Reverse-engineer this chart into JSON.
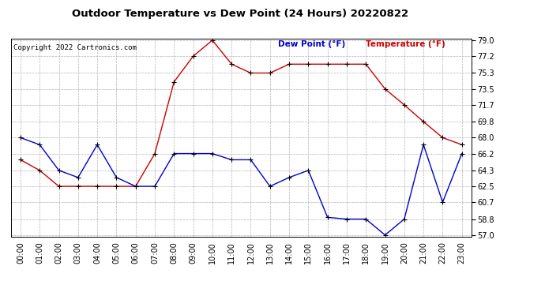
{
  "title": "Outdoor Temperature vs Dew Point (24 Hours) 20220822",
  "copyright": "Copyright 2022 Cartronics.com",
  "legend_dew": "Dew Point (°F)",
  "legend_temp": "Temperature (°F)",
  "hours": [
    "00:00",
    "01:00",
    "02:00",
    "03:00",
    "04:00",
    "05:00",
    "06:00",
    "07:00",
    "08:00",
    "09:00",
    "10:00",
    "11:00",
    "12:00",
    "13:00",
    "14:00",
    "15:00",
    "16:00",
    "17:00",
    "18:00",
    "19:00",
    "20:00",
    "21:00",
    "22:00",
    "23:00"
  ],
  "temperature": [
    65.5,
    64.3,
    62.5,
    62.5,
    62.5,
    62.5,
    62.5,
    66.2,
    74.3,
    77.2,
    79.0,
    76.3,
    75.3,
    75.3,
    76.3,
    76.3,
    76.3,
    76.3,
    76.3,
    73.5,
    71.7,
    69.8,
    68.0,
    67.2
  ],
  "dew_point": [
    68.0,
    67.2,
    64.3,
    63.5,
    67.2,
    63.5,
    62.5,
    62.5,
    66.2,
    66.2,
    66.2,
    65.5,
    65.5,
    62.5,
    63.5,
    64.3,
    59.0,
    58.8,
    58.8,
    57.0,
    58.8,
    67.2,
    60.7,
    66.2
  ],
  "temp_color": "#cc0000",
  "dew_color": "#0000cc",
  "ylim_min": 57.0,
  "ylim_max": 79.0,
  "yticks": [
    57.0,
    58.8,
    60.7,
    62.5,
    64.3,
    66.2,
    68.0,
    69.8,
    71.7,
    73.5,
    75.3,
    77.2,
    79.0
  ],
  "bg_color": "#ffffff",
  "grid_color": "#aaaaaa",
  "fig_width": 6.9,
  "fig_height": 3.75,
  "dpi": 100
}
